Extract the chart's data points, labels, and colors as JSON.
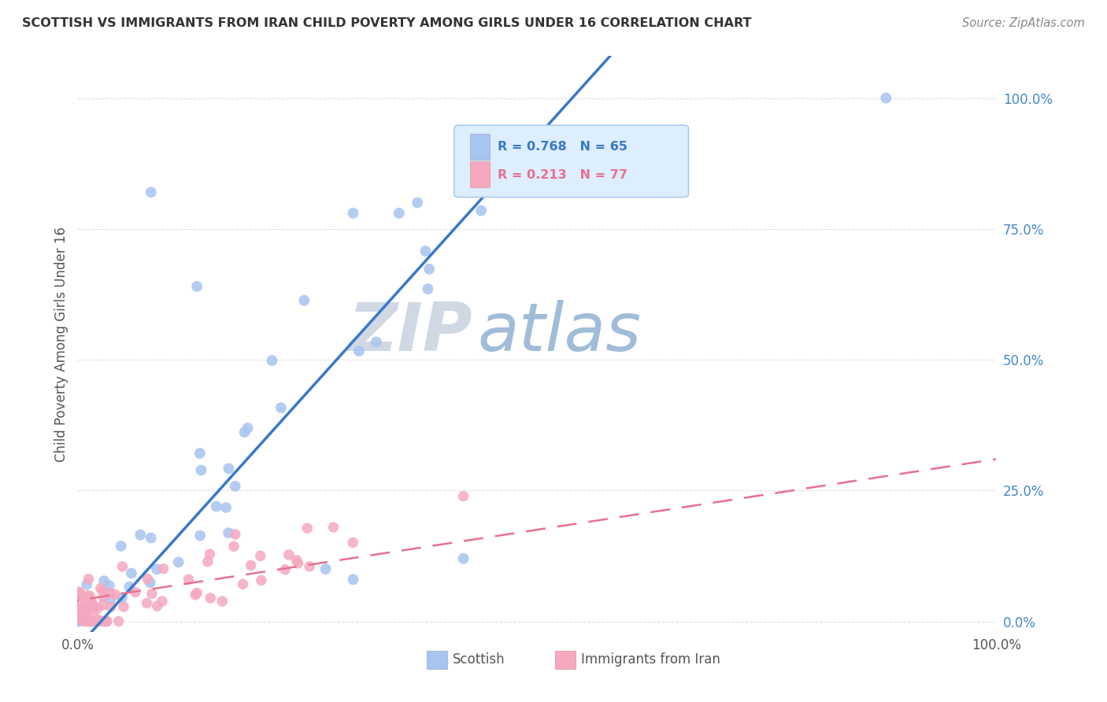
{
  "title": "SCOTTISH VS IMMIGRANTS FROM IRAN CHILD POVERTY AMONG GIRLS UNDER 16 CORRELATION CHART",
  "source": "Source: ZipAtlas.com",
  "ylabel": "Child Poverty Among Girls Under 16",
  "ytick_labels": [
    "0.0%",
    "25.0%",
    "50.0%",
    "75.0%",
    "100.0%"
  ],
  "ytick_vals": [
    0,
    0.25,
    0.5,
    0.75,
    1.0
  ],
  "xlim": [
    0,
    1.0
  ],
  "ylim": [
    -0.02,
    1.05
  ],
  "scottish_R": 0.768,
  "scottish_N": 65,
  "iran_R": 0.213,
  "iran_N": 77,
  "scottish_color": "#a8c4f0",
  "iran_color": "#f5a8c0",
  "scottish_line_color": "#3878c8",
  "iran_line_color": "#e87090",
  "watermark_zip": "ZIP",
  "watermark_atlas": "atlas",
  "watermark_zip_color": "#d0d8e4",
  "watermark_atlas_color": "#a0bcd8",
  "legend_box_color": "#ddeeff",
  "legend_border_color": "#aaccee",
  "background_color": "#ffffff",
  "grid_color": "#cccccc",
  "ytick_color": "#4488cc",
  "xtick_color": "#555555",
  "ylabel_color": "#555555",
  "title_color": "#333333",
  "source_color": "#888888"
}
